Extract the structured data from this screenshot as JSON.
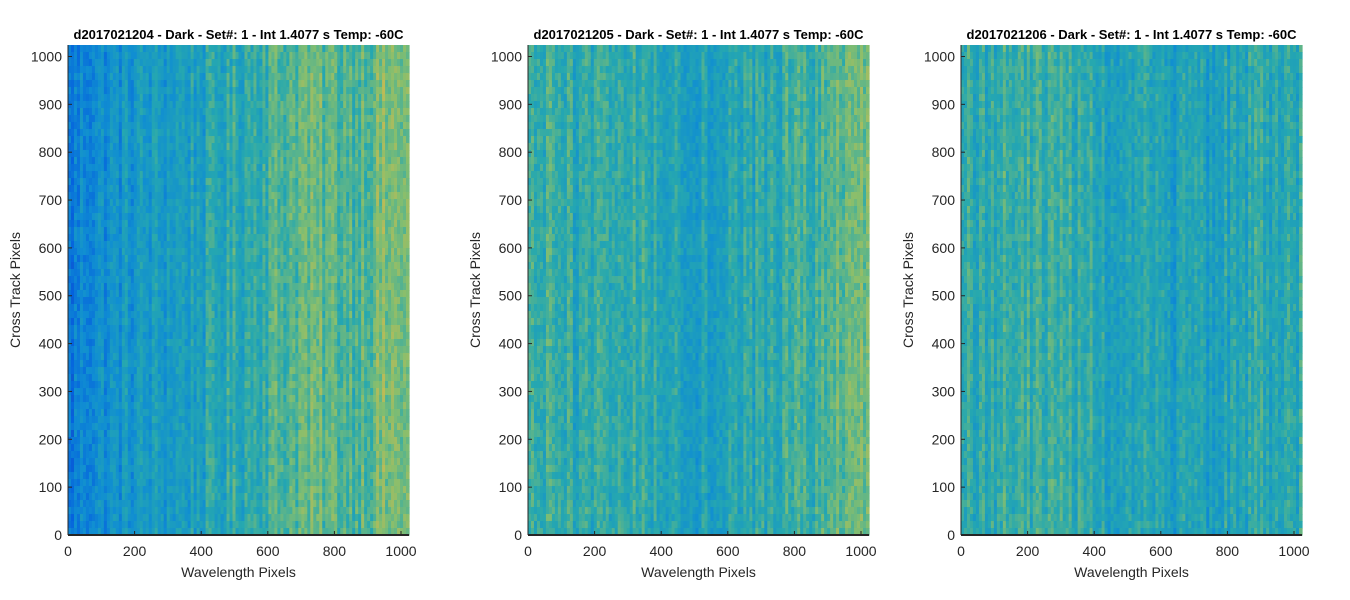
{
  "chart_data": [
    {
      "type": "heatmap",
      "title": "d2017021204 - Dark - Set#: 1 - Int 1.4077 s Temp: -60C",
      "xlabel": "Wavelength Pixels",
      "ylabel": "Cross Track Pixels",
      "xlim": [
        0,
        1024
      ],
      "ylim": [
        0,
        1024
      ],
      "xticks": [
        0,
        200,
        400,
        600,
        800,
        1000
      ],
      "yticks": [
        0,
        100,
        200,
        300,
        400,
        500,
        600,
        700,
        800,
        900,
        1000
      ],
      "grid": false,
      "colormap": "parula",
      "x_profile": {
        "x": [
          0,
          50,
          200,
          400,
          550,
          700,
          850,
          950,
          1024
        ],
        "level": [
          0.25,
          0.34,
          0.4,
          0.45,
          0.52,
          0.6,
          0.57,
          0.63,
          0.63
        ]
      }
    },
    {
      "type": "heatmap",
      "title": "d2017021205 - Dark - Set#: 1 - Int 1.4077 s Temp: -60C",
      "xlabel": "Wavelength Pixels",
      "ylabel": "Cross Track Pixels",
      "xlim": [
        0,
        1024
      ],
      "ylim": [
        0,
        1024
      ],
      "xticks": [
        0,
        200,
        400,
        600,
        800,
        1000
      ],
      "yticks": [
        0,
        100,
        200,
        300,
        400,
        500,
        600,
        700,
        800,
        900,
        1000
      ],
      "grid": false,
      "colormap": "parula",
      "x_profile": {
        "x": [
          0,
          150,
          300,
          450,
          500,
          650,
          800,
          950,
          1024
        ],
        "level": [
          0.52,
          0.5,
          0.52,
          0.48,
          0.45,
          0.48,
          0.52,
          0.58,
          0.62
        ]
      }
    },
    {
      "type": "heatmap",
      "title": "d2017021206 - Dark - Set#: 1 - Int 1.4077 s Temp: -60C",
      "xlabel": "Wavelength Pixels",
      "ylabel": "Cross Track Pixels",
      "xlim": [
        0,
        1024
      ],
      "ylim": [
        0,
        1024
      ],
      "xticks": [
        0,
        200,
        400,
        600,
        800,
        1000
      ],
      "yticks": [
        0,
        100,
        200,
        300,
        400,
        500,
        600,
        700,
        800,
        900,
        1000
      ],
      "grid": false,
      "colormap": "parula",
      "x_profile": {
        "x": [
          0,
          150,
          300,
          450,
          600,
          750,
          900,
          1024
        ],
        "level": [
          0.5,
          0.52,
          0.53,
          0.47,
          0.44,
          0.45,
          0.5,
          0.5
        ]
      }
    }
  ]
}
